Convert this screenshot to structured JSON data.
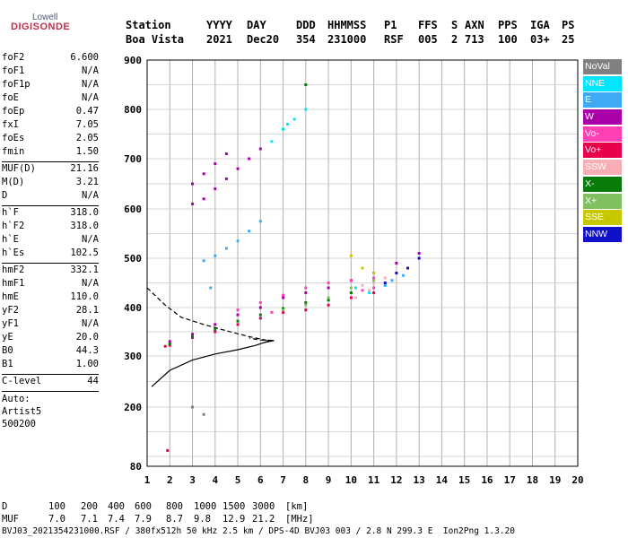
{
  "logo": {
    "top": "Lowell",
    "bottom": "DIGISONDE"
  },
  "header": {
    "line1": [
      "Station",
      "YYYY",
      "DAY",
      "DDD",
      "HHMMSS",
      "P1",
      "FFS",
      "S",
      "AXN",
      "PPS",
      "IGA",
      "PS"
    ],
    "line2": [
      "Boa Vista",
      "2021",
      "Dec20",
      "354",
      "231000",
      "RSF",
      "005",
      "2",
      "713",
      "100",
      "03+",
      "25"
    ]
  },
  "params": {
    "group1": [
      {
        "label": "foF2",
        "value": "6.600"
      },
      {
        "label": "foF1",
        "value": "N/A"
      },
      {
        "label": "foF1p",
        "value": "N/A"
      },
      {
        "label": "foE",
        "value": "N/A"
      },
      {
        "label": "foEp",
        "value": "0.47"
      },
      {
        "label": "fxI",
        "value": "7.05"
      },
      {
        "label": "foEs",
        "value": "2.05"
      },
      {
        "label": "fmin",
        "value": "1.50"
      }
    ],
    "group2": [
      {
        "label": "MUF(D)",
        "value": "21.16"
      },
      {
        "label": "M(D)",
        "value": "3.21"
      },
      {
        "label": "D",
        "value": "N/A"
      }
    ],
    "group3": [
      {
        "label": "h`F",
        "value": "318.0"
      },
      {
        "label": "h`F2",
        "value": "318.0"
      },
      {
        "label": "h`E",
        "value": "N/A"
      },
      {
        "label": "h`Es",
        "value": "102.5"
      }
    ],
    "group4": [
      {
        "label": "hmF2",
        "value": "332.1"
      },
      {
        "label": "hmF1",
        "value": "N/A"
      },
      {
        "label": "hmE",
        "value": "110.0"
      },
      {
        "label": "yF2",
        "value": "28.1"
      },
      {
        "label": "yF1",
        "value": "N/A"
      },
      {
        "label": "yE",
        "value": "20.0"
      },
      {
        "label": "B0",
        "value": "44.3"
      },
      {
        "label": "B1",
        "value": "1.00"
      }
    ],
    "group5": [
      {
        "label": "C-level",
        "value": "44"
      }
    ],
    "auto": [
      "Auto:",
      "Artist5",
      "500200"
    ]
  },
  "legend": [
    {
      "label": "NoVal",
      "color": "#808080"
    },
    {
      "label": "NNE",
      "color": "#00e5ff"
    },
    {
      "label": "E",
      "color": "#3fa9f5"
    },
    {
      "label": "W",
      "color": "#aa00aa"
    },
    {
      "label": "Vo-",
      "color": "#ff3fb4"
    },
    {
      "label": "Vo+",
      "color": "#e8004a"
    },
    {
      "label": "SSW",
      "color": "#f7aeb4"
    },
    {
      "label": "X-",
      "color": "#0a7a0a"
    },
    {
      "label": "X+",
      "color": "#80c060"
    },
    {
      "label": "SSE",
      "color": "#c8c800"
    },
    {
      "label": "NNW",
      "color": "#1010c8"
    }
  ],
  "bottom": {
    "d_label": "D",
    "d_values": [
      "100",
      "200",
      "400",
      "600",
      "800",
      "1000",
      "1500",
      "3000",
      "[km]"
    ],
    "muf_label": "MUF",
    "muf_values": [
      "7.0",
      "7.1",
      "7.4",
      "7.9",
      "8.7",
      "9.8",
      "12.9",
      "21.2",
      "[MHz]"
    ],
    "footer": "BVJ03_2021354231000.RSF / 380fx512h 50 kHz 2.5 km / DPS-4D BVJ03 003 / 2.8 N 299.3 E  Ion2Png 1.3.20"
  },
  "chart_data": {
    "type": "scatter",
    "title": "",
    "xlabel": "",
    "ylabel": "",
    "xlim": [
      1,
      20
    ],
    "ylim": [
      80,
      900
    ],
    "x_ticks": [
      1,
      2,
      3,
      4,
      5,
      6,
      7,
      8,
      9,
      10,
      11,
      12,
      13,
      14,
      15,
      16,
      17,
      18,
      19,
      20
    ],
    "y_ticks": [
      80,
      200,
      300,
      400,
      500,
      600,
      700,
      800,
      900
    ],
    "grid": true,
    "series": [
      {
        "name": "NNE",
        "color": "#00e5ff",
        "points": [
          [
            6.5,
            735
          ],
          [
            7,
            760
          ],
          [
            7.5,
            780
          ],
          [
            8,
            800
          ],
          [
            7.2,
            770
          ],
          [
            10.2,
            440
          ],
          [
            10.8,
            430
          ],
          [
            11.5,
            445
          ]
        ]
      },
      {
        "name": "E",
        "color": "#3fa9f5",
        "points": [
          [
            3.5,
            495
          ],
          [
            4,
            505
          ],
          [
            4.5,
            520
          ],
          [
            5,
            535
          ],
          [
            5.5,
            555
          ],
          [
            6,
            575
          ],
          [
            3.8,
            440
          ],
          [
            11.5,
            445
          ],
          [
            11.8,
            455
          ],
          [
            12.3,
            465
          ]
        ]
      },
      {
        "name": "W",
        "color": "#aa00aa",
        "points": [
          [
            3,
            650
          ],
          [
            3.5,
            670
          ],
          [
            4,
            690
          ],
          [
            4.5,
            710
          ],
          [
            3,
            610
          ],
          [
            3.5,
            620
          ],
          [
            4,
            640
          ],
          [
            4.5,
            660
          ],
          [
            5,
            680
          ],
          [
            5.5,
            700
          ],
          [
            6,
            720
          ],
          [
            2,
            330
          ],
          [
            3,
            345
          ],
          [
            4,
            365
          ],
          [
            5,
            385
          ],
          [
            6,
            400
          ],
          [
            7,
            420
          ],
          [
            8,
            430
          ],
          [
            9,
            440
          ],
          [
            10,
            455
          ],
          [
            11,
            470
          ],
          [
            12,
            490
          ],
          [
            13,
            510
          ]
        ]
      },
      {
        "name": "Vo-",
        "color": "#ff3fb4",
        "points": [
          [
            6,
            410
          ],
          [
            7,
            425
          ],
          [
            8,
            440
          ],
          [
            9,
            450
          ],
          [
            10,
            455
          ],
          [
            11,
            460
          ],
          [
            10.5,
            435
          ],
          [
            11,
            440
          ],
          [
            5,
            395
          ],
          [
            6.5,
            390
          ]
        ]
      },
      {
        "name": "Vo+",
        "color": "#e8004a",
        "points": [
          [
            1.8,
            320
          ],
          [
            2,
            322
          ],
          [
            3,
            338
          ],
          [
            4,
            350
          ],
          [
            5,
            365
          ],
          [
            6,
            378
          ],
          [
            7,
            390
          ],
          [
            8,
            395
          ],
          [
            9,
            405
          ],
          [
            10,
            420
          ],
          [
            11,
            430
          ],
          [
            1.9,
            112
          ]
        ]
      },
      {
        "name": "SSW",
        "color": "#f7aeb4",
        "points": [
          [
            10,
            430
          ],
          [
            10.5,
            445
          ],
          [
            11,
            450
          ],
          [
            11.5,
            460
          ],
          [
            10.2,
            420
          ],
          [
            10.8,
            435
          ]
        ]
      },
      {
        "name": "X-",
        "color": "#0a7a0a",
        "points": [
          [
            2,
            325
          ],
          [
            3,
            340
          ],
          [
            4,
            355
          ],
          [
            5,
            372
          ],
          [
            6,
            385
          ],
          [
            7,
            398
          ],
          [
            8,
            410
          ],
          [
            9,
            415
          ],
          [
            10,
            430
          ],
          [
            8,
            850
          ]
        ]
      },
      {
        "name": "X+",
        "color": "#80c060",
        "points": [
          [
            7,
            395
          ],
          [
            8,
            405
          ],
          [
            9,
            420
          ],
          [
            10,
            440
          ],
          [
            11,
            455
          ]
        ]
      },
      {
        "name": "SSE",
        "color": "#c8c800",
        "points": [
          [
            10,
            505
          ],
          [
            10.5,
            480
          ],
          [
            11,
            470
          ]
        ]
      },
      {
        "name": "NNW",
        "color": "#1010c8",
        "points": [
          [
            12,
            470
          ],
          [
            12.5,
            480
          ],
          [
            13,
            500
          ],
          [
            11.5,
            450
          ]
        ]
      },
      {
        "name": "NoVal",
        "color": "#808080",
        "points": [
          [
            3,
            200
          ],
          [
            3.5,
            185
          ]
        ]
      }
    ],
    "profile_solid": [
      [
        1.2,
        240
      ],
      [
        2,
        272
      ],
      [
        3,
        292
      ],
      [
        4,
        304
      ],
      [
        5,
        313
      ],
      [
        5.8,
        322
      ],
      [
        6.3,
        330
      ],
      [
        6.6,
        332
      ],
      [
        6.4,
        330
      ],
      [
        6.1,
        327
      ]
    ],
    "profile_dashed": [
      [
        1,
        440
      ],
      [
        1.8,
        405
      ],
      [
        2.5,
        380
      ],
      [
        3.5,
        365
      ],
      [
        4.5,
        352
      ],
      [
        5.5,
        340
      ],
      [
        6.3,
        332
      ],
      [
        6.6,
        332
      ],
      [
        6,
        333
      ],
      [
        5.5,
        337
      ]
    ]
  }
}
